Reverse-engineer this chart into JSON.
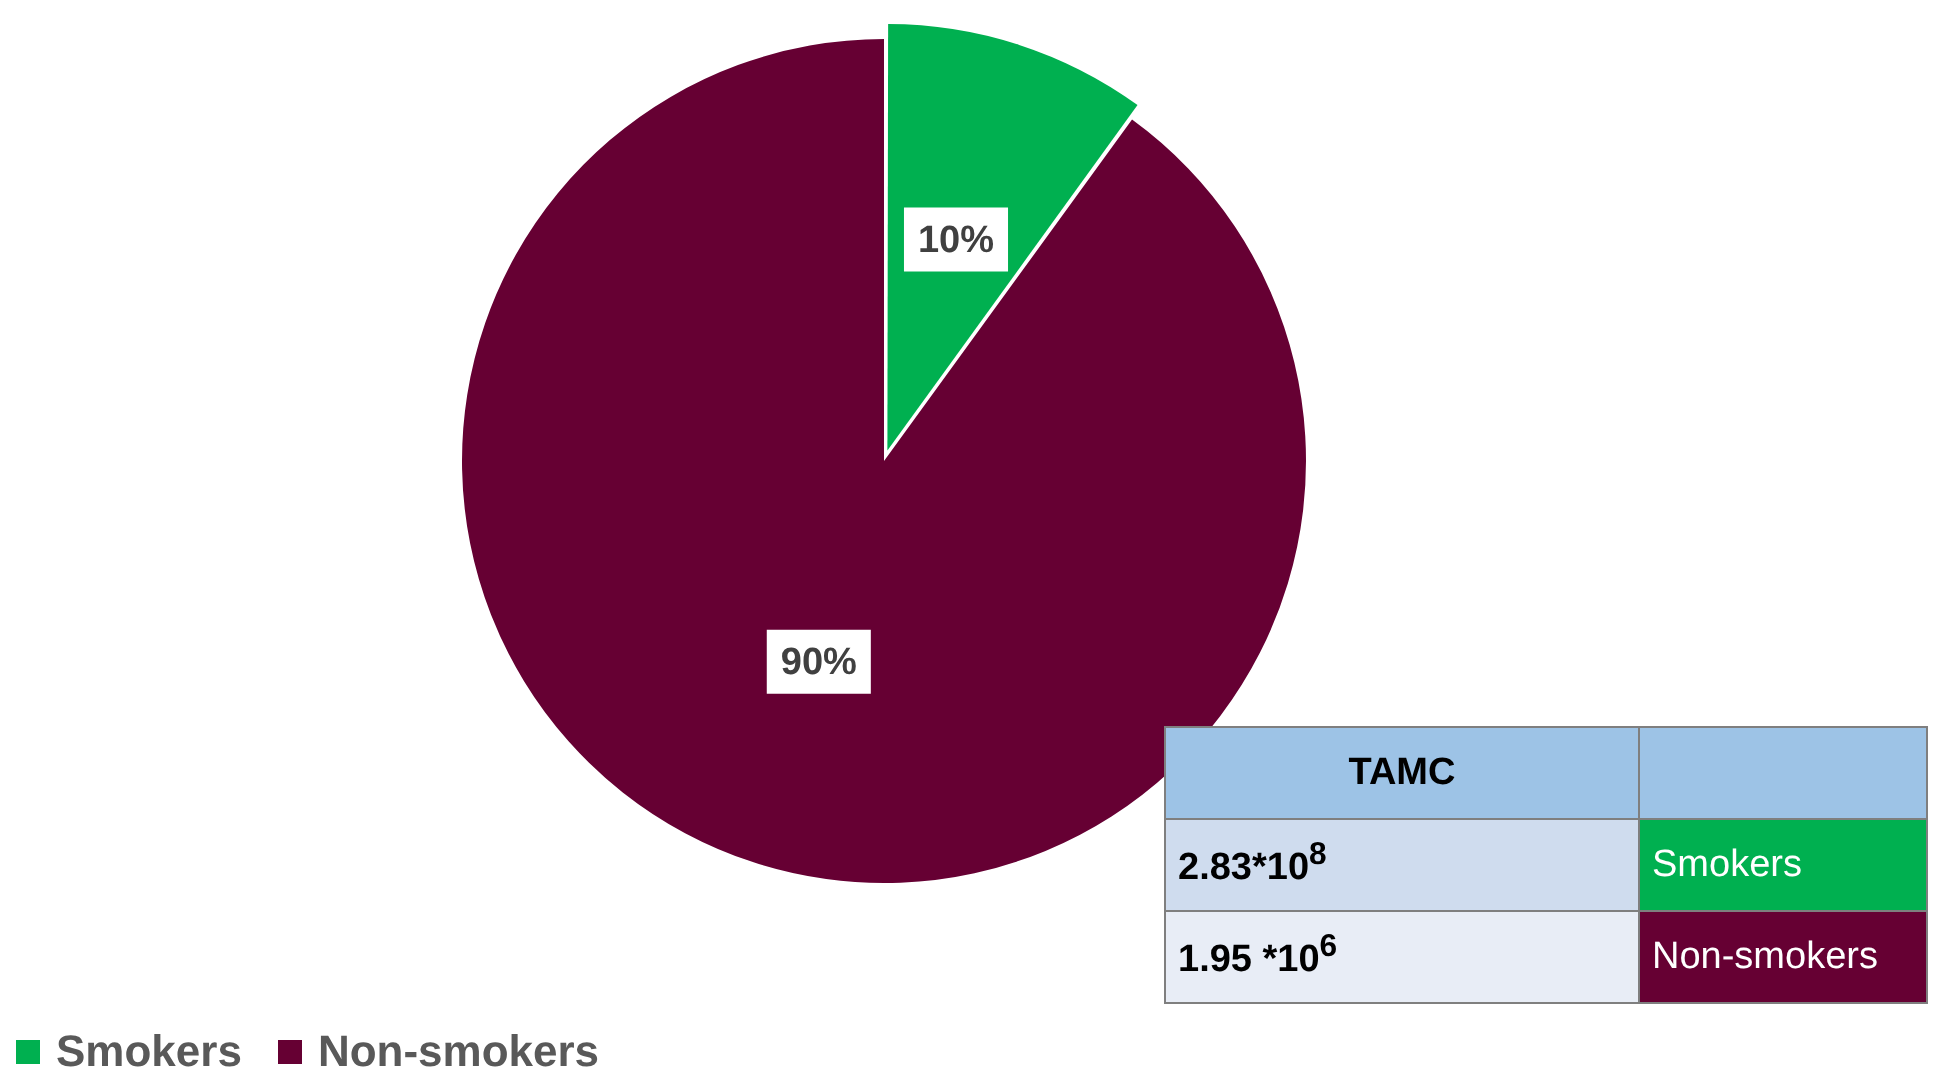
{
  "chart_data": {
    "type": "pie",
    "categories": [
      "Smokers",
      "Non-smokers"
    ],
    "values": [
      10,
      90
    ],
    "colors": [
      "#00b050",
      "#660033"
    ],
    "value_labels": [
      "10%",
      "90%"
    ],
    "legend": "bottom left",
    "annotations": [
      "TAMC",
      "2.83*10$^{8}$",
      "1.95 *10$^{6}$"
    ]
  }
}
